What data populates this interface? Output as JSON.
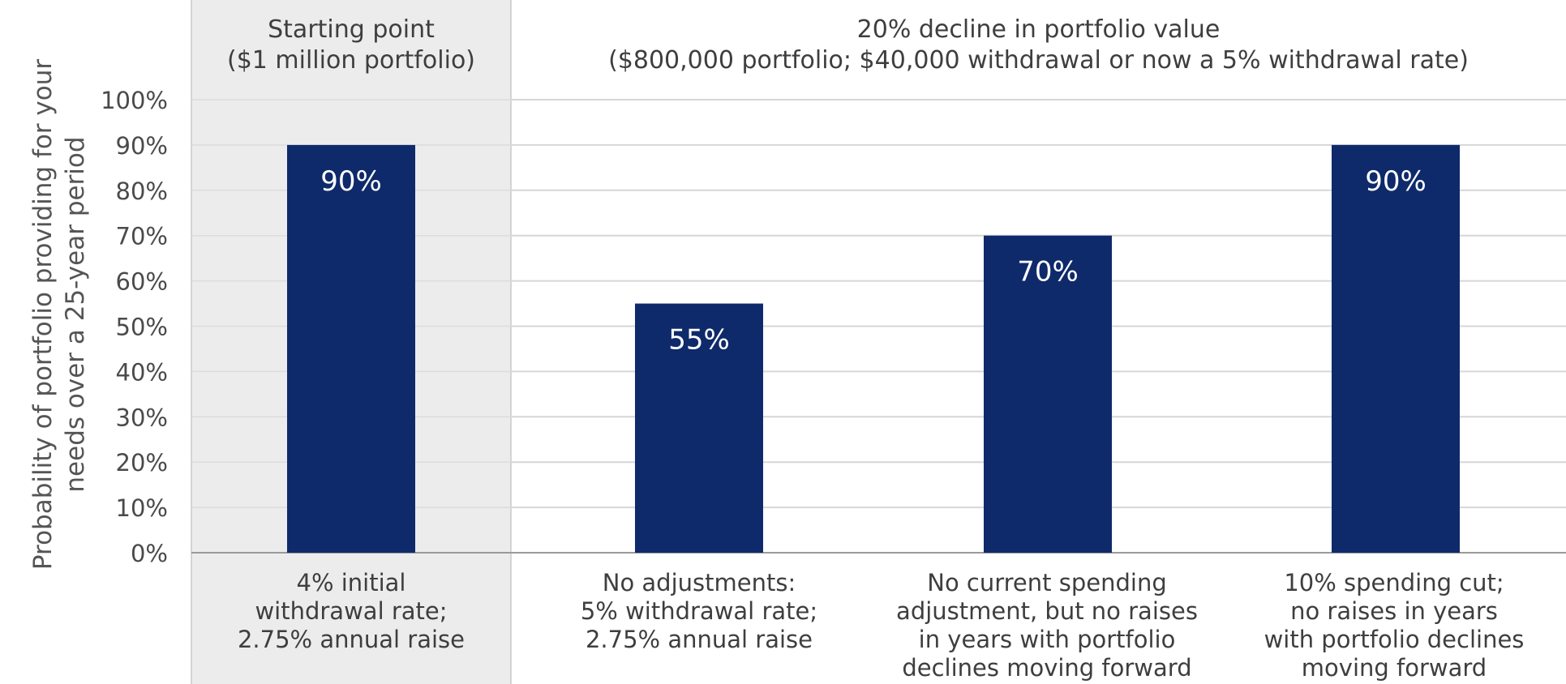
{
  "chart_data": {
    "type": "bar",
    "categories": [
      [
        "4% initial",
        "withdrawal rate;",
        "2.75% annual raise"
      ],
      [
        "No adjustments:",
        "5% withdrawal rate;",
        "2.75% annual raise"
      ],
      [
        "No current spending",
        "adjustment, but no raises",
        "in years with portfolio",
        "declines moving forward"
      ],
      [
        "10% spending cut;",
        "no raises in years",
        "with portfolio declines",
        "moving forward"
      ]
    ],
    "values": [
      90,
      55,
      70,
      90
    ],
    "data_labels": [
      "90%",
      "55%",
      "70%",
      "90%"
    ],
    "ylim": [
      0,
      100
    ],
    "yticks": [
      "0%",
      "10%",
      "20%",
      "30%",
      "40%",
      "50%",
      "60%",
      "70%",
      "80%",
      "90%",
      "100%"
    ],
    "ylabel": [
      "Probability of portfolio providing for your",
      "needs over a 25-year period"
    ],
    "grid": true,
    "groups": [
      {
        "title": [
          "Starting point",
          "($1 million portfolio)"
        ],
        "shaded": true
      },
      {
        "title": [
          "20% decline in portfolio value",
          "($800,000 portfolio; $40,000 withdrawal or now a 5% withdrawal rate)"
        ],
        "shaded": false
      }
    ],
    "colors": {
      "bar": "#0f2a6b",
      "panel": "#ececec",
      "grid": "#d6d6d6",
      "axis": "#9a9a9a",
      "label_text": "#ffffff"
    }
  }
}
